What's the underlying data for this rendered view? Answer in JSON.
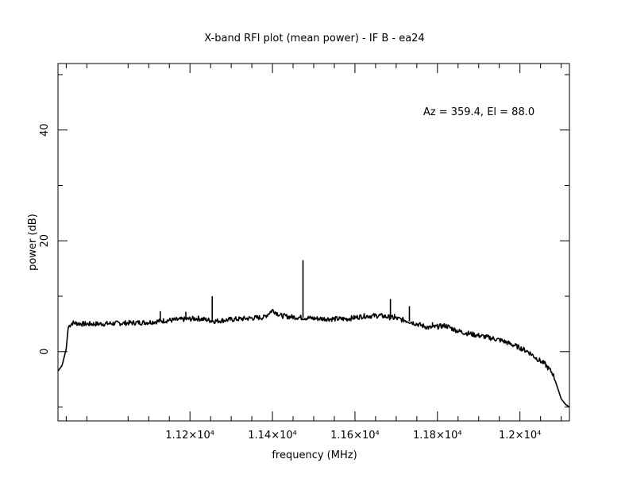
{
  "chart_data": {
    "type": "line",
    "title": "X-band RFI plot (mean power) - IF B - ea24",
    "xlabel": "frequency (MHz)",
    "ylabel": "power (dB)",
    "annotation": "Az = 359.4, El = 88.0",
    "xlim": [
      10880,
      12120
    ],
    "ylim": [
      -12.5,
      52
    ],
    "x_ticks": [
      {
        "value": 11200,
        "label": "1.12×10⁴"
      },
      {
        "value": 11400,
        "label": "1.14×10⁴"
      },
      {
        "value": 11600,
        "label": "1.16×10⁴"
      },
      {
        "value": 11800,
        "label": "1.18×10⁴"
      },
      {
        "value": 12000,
        "label": "1.2×10⁴"
      }
    ],
    "y_ticks": [
      {
        "value": 0,
        "label": "0"
      },
      {
        "value": 20,
        "label": "20"
      },
      {
        "value": 40,
        "label": "40"
      }
    ],
    "grid": false,
    "line_color": "#000000",
    "series": [
      {
        "x": [
          10880,
          10890,
          10900,
          10905,
          10915,
          10940,
          10980,
          11020,
          11060,
          11100,
          11140,
          11180,
          11220,
          11260,
          11300,
          11340,
          11380,
          11400,
          11420,
          11440,
          11460,
          11500,
          11540,
          11580,
          11620,
          11660,
          11700,
          11730,
          11750,
          11780,
          11800,
          11820,
          11840,
          11860,
          11900,
          11940,
          11960,
          11980,
          12000,
          12020,
          12040,
          12060,
          12080,
          12100,
          12110,
          12120
        ],
        "y": [
          -3.5,
          -2.5,
          0.5,
          4.5,
          5.2,
          5.0,
          5.0,
          5.1,
          5.2,
          5.3,
          5.6,
          5.8,
          6.0,
          5.5,
          5.8,
          6.0,
          6.2,
          7.5,
          6.5,
          6.3,
          6.2,
          6.0,
          5.9,
          5.9,
          6.4,
          6.5,
          6.0,
          5.5,
          5.0,
          4.3,
          4.5,
          4.7,
          4.0,
          3.5,
          2.9,
          2.3,
          1.9,
          1.3,
          0.7,
          0.0,
          -1.2,
          -2.2,
          -4.0,
          -8.5,
          -9.5,
          -10.0
        ]
      }
    ],
    "spikes": [
      {
        "x": 11128,
        "y": 7.3
      },
      {
        "x": 11190,
        "y": 7.2
      },
      {
        "x": 11254,
        "y": 10.0
      },
      {
        "x": 11474,
        "y": 16.5
      },
      {
        "x": 11530,
        "y": 5.6
      },
      {
        "x": 11686,
        "y": 9.5
      },
      {
        "x": 11696,
        "y": 6.8
      },
      {
        "x": 11732,
        "y": 8.2
      },
      {
        "x": 11788,
        "y": 5.3
      }
    ]
  }
}
